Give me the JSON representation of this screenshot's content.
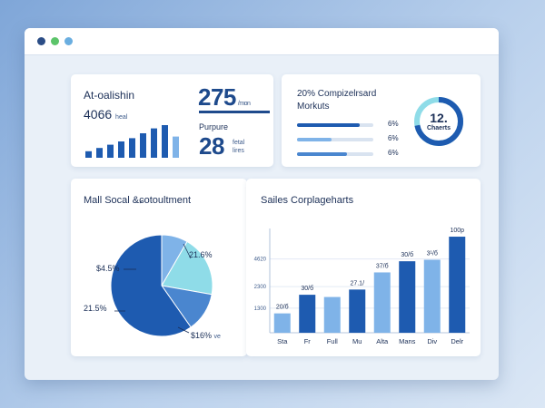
{
  "colors": {
    "dark_blue": "#1e5bb0",
    "mid_blue": "#4a86cf",
    "light_blue": "#7fb3e8",
    "cyan": "#8fdce8",
    "track": "#d9e3f0"
  },
  "window": {
    "controls": [
      "close-dot",
      "maximize-dot",
      "minimize-dot"
    ]
  },
  "card1": {
    "title": "At-oalishin",
    "value": "4066",
    "value_unit": "heal",
    "mini_bars": [
      0.2,
      0.3,
      0.4,
      0.5,
      0.6,
      0.75,
      0.9,
      1.0,
      0.65
    ]
  },
  "card1b": {
    "big_value": "275",
    "big_unit": "/mon",
    "sub_label": "Purpure",
    "value2": "28",
    "value2_unit_1": "fetal",
    "value2_unit_2": "lires"
  },
  "card2": {
    "title": "20% Compizelrsard",
    "subtitle": "Morkuts",
    "progress": [
      {
        "fill": 0.82,
        "label": "6%"
      },
      {
        "fill": 0.45,
        "label": "6%"
      },
      {
        "fill": 0.65,
        "label": "6%"
      }
    ],
    "donut_value": "12.",
    "donut_label": "Chaerts",
    "donut_fill": 0.72
  },
  "card3": {
    "title": "Mall Socal &ɕotoultment",
    "labels": {
      "top_left": "$4.5%",
      "top_right": "21.6%",
      "bottom_left": "21.5%",
      "bottom_right": "$16%",
      "bottom_right_suffix": "ve"
    }
  },
  "chart_data": {
    "type": "bar",
    "title": "Sailes Corplageharts",
    "categories": [
      "Sta",
      "Fr",
      "Full",
      "Mu",
      "Alta",
      "Mans",
      "Div",
      "Delr"
    ],
    "values": [
      130,
      255,
      240,
      290,
      405,
      480,
      490,
      645
    ],
    "data_labels": [
      "20/б",
      "30/б",
      "",
      "27.1/",
      "37/б",
      "30/б",
      "3¹/б",
      "100р"
    ],
    "y_ticks": [
      "1300",
      "2300",
      "4620"
    ],
    "ylim": [
      0,
      700
    ],
    "grid": true
  }
}
